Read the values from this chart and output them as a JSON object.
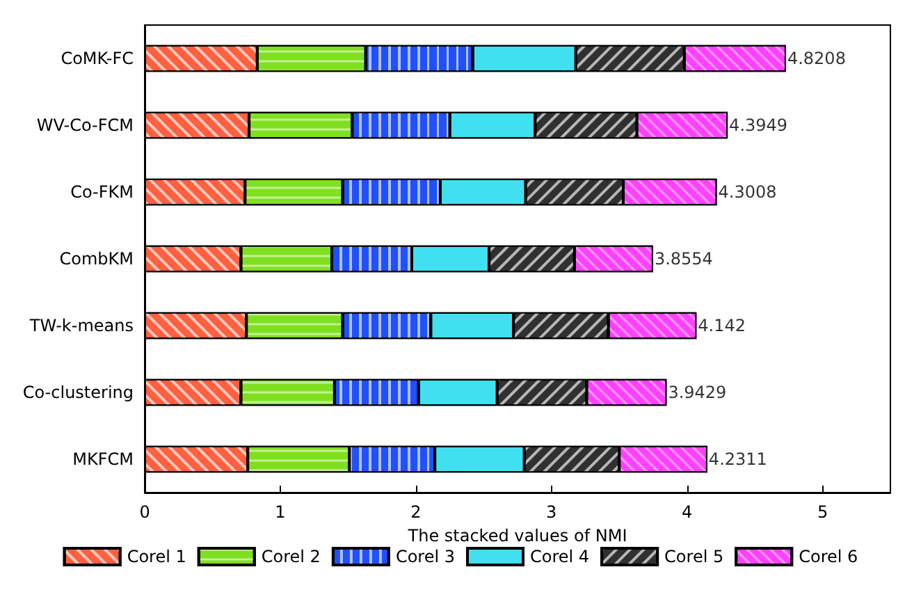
{
  "chart_data": {
    "type": "bar",
    "orientation": "horizontal",
    "stacked": true,
    "xlabel": "The stacked values of NMI",
    "categories": [
      "CoMK-FC",
      "WV-Co-FCM",
      "Co-FKM",
      "CombKM",
      "TW-k-means",
      "Co-clustering",
      "MKFCM"
    ],
    "series": [
      {
        "name": "Corel 1",
        "color": "#ff6040",
        "values": [
          0.83,
          0.77,
          0.74,
          0.71,
          0.75,
          0.71,
          0.76
        ]
      },
      {
        "name": "Corel 2",
        "color": "#80e020",
        "values": [
          0.8,
          0.76,
          0.72,
          0.67,
          0.71,
          0.69,
          0.75
        ]
      },
      {
        "name": "Corel 3",
        "color": "#2050ff",
        "values": [
          0.79,
          0.72,
          0.72,
          0.59,
          0.65,
          0.62,
          0.63
        ]
      },
      {
        "name": "Corel 4",
        "color": "#40e0f0",
        "values": [
          0.76,
          0.63,
          0.63,
          0.57,
          0.61,
          0.58,
          0.66
        ]
      },
      {
        "name": "Corel 5",
        "color": "#303030",
        "values": [
          0.8,
          0.75,
          0.72,
          0.63,
          0.7,
          0.66,
          0.7
        ]
      },
      {
        "name": "Corel 6",
        "color": "#ff40ff",
        "values": [
          0.75,
          0.67,
          0.69,
          0.58,
          0.65,
          0.59,
          0.65
        ]
      }
    ],
    "annotations": [
      {
        "text": "4.8208",
        "x": 4.73,
        "y": "CoMK-FC"
      },
      {
        "text": "4.3949",
        "x": 4.3,
        "y": "WV-Co-FCM"
      },
      {
        "text": "4.3008",
        "x": 4.22,
        "y": "Co-FKM"
      },
      {
        "text": "3.8554",
        "x": 3.75,
        "y": "CombKM"
      },
      {
        "text": "4.142",
        "x": 4.07,
        "y": "TW-k-means"
      },
      {
        "text": "3.9429",
        "x": 3.85,
        "y": "Co-clustering"
      },
      {
        "text": "4.2311",
        "x": 4.15,
        "y": "MKFCM"
      }
    ],
    "xlim": [
      0,
      5.5
    ],
    "xticks": [
      0,
      1,
      2,
      3,
      4,
      5
    ],
    "grid": false,
    "legend": "bottom"
  }
}
